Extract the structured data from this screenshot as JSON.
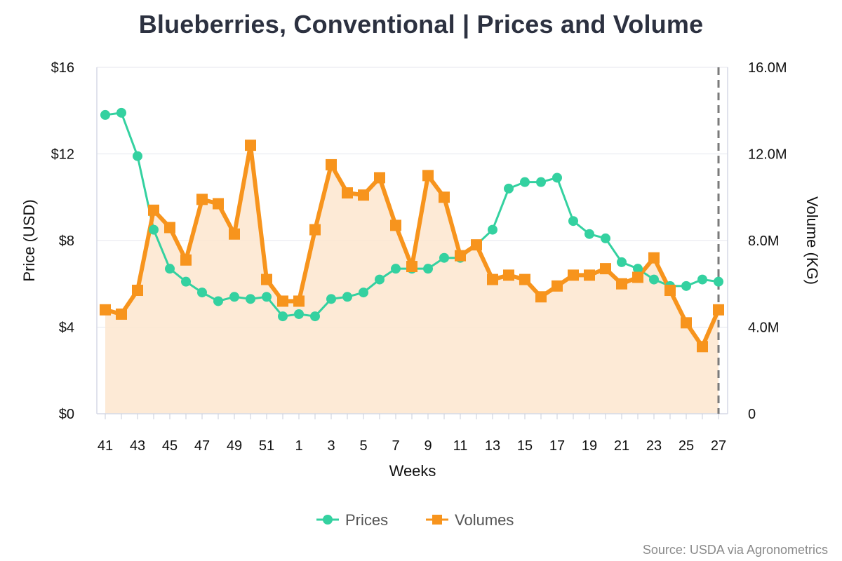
{
  "chart_data": {
    "type": "line",
    "title": "Blueberries, Conventional | Prices and Volume",
    "xlabel": "Weeks",
    "ylabel_left": "Price (USD)",
    "ylabel_right": "Volume (KG)",
    "x": [
      "41",
      "42",
      "43",
      "44",
      "45",
      "46",
      "47",
      "48",
      "49",
      "50",
      "51",
      "52",
      "1",
      "2",
      "3",
      "4",
      "5",
      "6",
      "7",
      "8",
      "9",
      "10",
      "11",
      "12",
      "13",
      "14",
      "15",
      "16",
      "17",
      "18",
      "19",
      "20",
      "21",
      "22",
      "23",
      "24",
      "25",
      "26",
      "27"
    ],
    "x_tick_labels": [
      "41",
      "43",
      "45",
      "47",
      "49",
      "51",
      "1",
      "3",
      "5",
      "7",
      "9",
      "11",
      "13",
      "15",
      "17",
      "19",
      "21",
      "23",
      "25",
      "27"
    ],
    "y_left_ticks": [
      "$0",
      "$4",
      "$8",
      "$12",
      "$16"
    ],
    "y_right_ticks": [
      "0",
      "4.0M",
      "8.0M",
      "12.0M",
      "16.0M"
    ],
    "ylim_left": [
      0,
      16
    ],
    "ylim_right": [
      0,
      16000000
    ],
    "grid": true,
    "legend_position": "bottom-center",
    "marker_line_week": "27",
    "series": [
      {
        "name": "Prices",
        "axis": "left",
        "color": "#34d1a0",
        "marker": "circle",
        "values": [
          13.8,
          13.9,
          11.9,
          8.5,
          6.7,
          6.1,
          5.6,
          5.2,
          5.4,
          5.3,
          5.4,
          4.5,
          4.6,
          4.5,
          5.3,
          5.4,
          5.6,
          6.2,
          6.7,
          6.7,
          6.7,
          7.2,
          7.2,
          7.8,
          8.5,
          10.4,
          10.7,
          10.7,
          10.9,
          8.9,
          8.3,
          8.1,
          7.0,
          6.7,
          6.2,
          5.9,
          5.9,
          6.2,
          6.1
        ]
      },
      {
        "name": "Volumes",
        "axis": "right",
        "color": "#f7941d",
        "marker": "square",
        "values": [
          4800000,
          4600000,
          5700000,
          9400000,
          8600000,
          7100000,
          9900000,
          9700000,
          8300000,
          12400000,
          6200000,
          5200000,
          5200000,
          8500000,
          11500000,
          10200000,
          10100000,
          10900000,
          8700000,
          6800000,
          11000000,
          10000000,
          7300000,
          7800000,
          6200000,
          6400000,
          6200000,
          5400000,
          5900000,
          6400000,
          6400000,
          6700000,
          6000000,
          6300000,
          7200000,
          5700000,
          4200000,
          3100000,
          4800000
        ]
      }
    ]
  },
  "source": "Source: USDA via Agronometrics"
}
